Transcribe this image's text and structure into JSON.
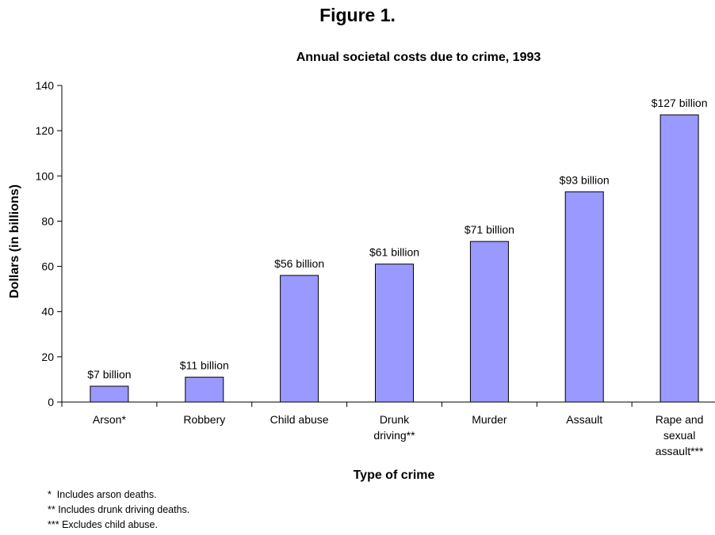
{
  "figure_label": "Figure 1.",
  "chart_data": {
    "type": "bar",
    "title": "Annual societal costs due to crime, 1993",
    "xlabel": "Type of crime",
    "ylabel": "Dollars (in billions)",
    "ylim": [
      0,
      140
    ],
    "yticks": [
      "0",
      "20",
      "40",
      "60",
      "80",
      "100",
      "120",
      "140"
    ],
    "categories": [
      [
        "Arson*"
      ],
      [
        "Robbery"
      ],
      [
        "Child abuse"
      ],
      [
        "Drunk",
        "driving**"
      ],
      [
        "Murder"
      ],
      [
        "Assault"
      ],
      [
        "Rape and",
        "sexual",
        "assault***"
      ]
    ],
    "values": [
      7,
      11,
      56,
      61,
      71,
      93,
      127
    ],
    "data_labels": [
      "$7 billion",
      "$11 billion",
      "$56 billion",
      "$61 billion",
      "$71 billion",
      "$93 billion",
      "$127 billion"
    ],
    "grid": false,
    "legend": "none",
    "bar_color": "#9999ff",
    "bar_border_color": "#000000"
  },
  "footnotes": [
    "*  Includes arson deaths.",
    "** Includes drunk driving deaths.",
    "*** Excludes child abuse."
  ]
}
